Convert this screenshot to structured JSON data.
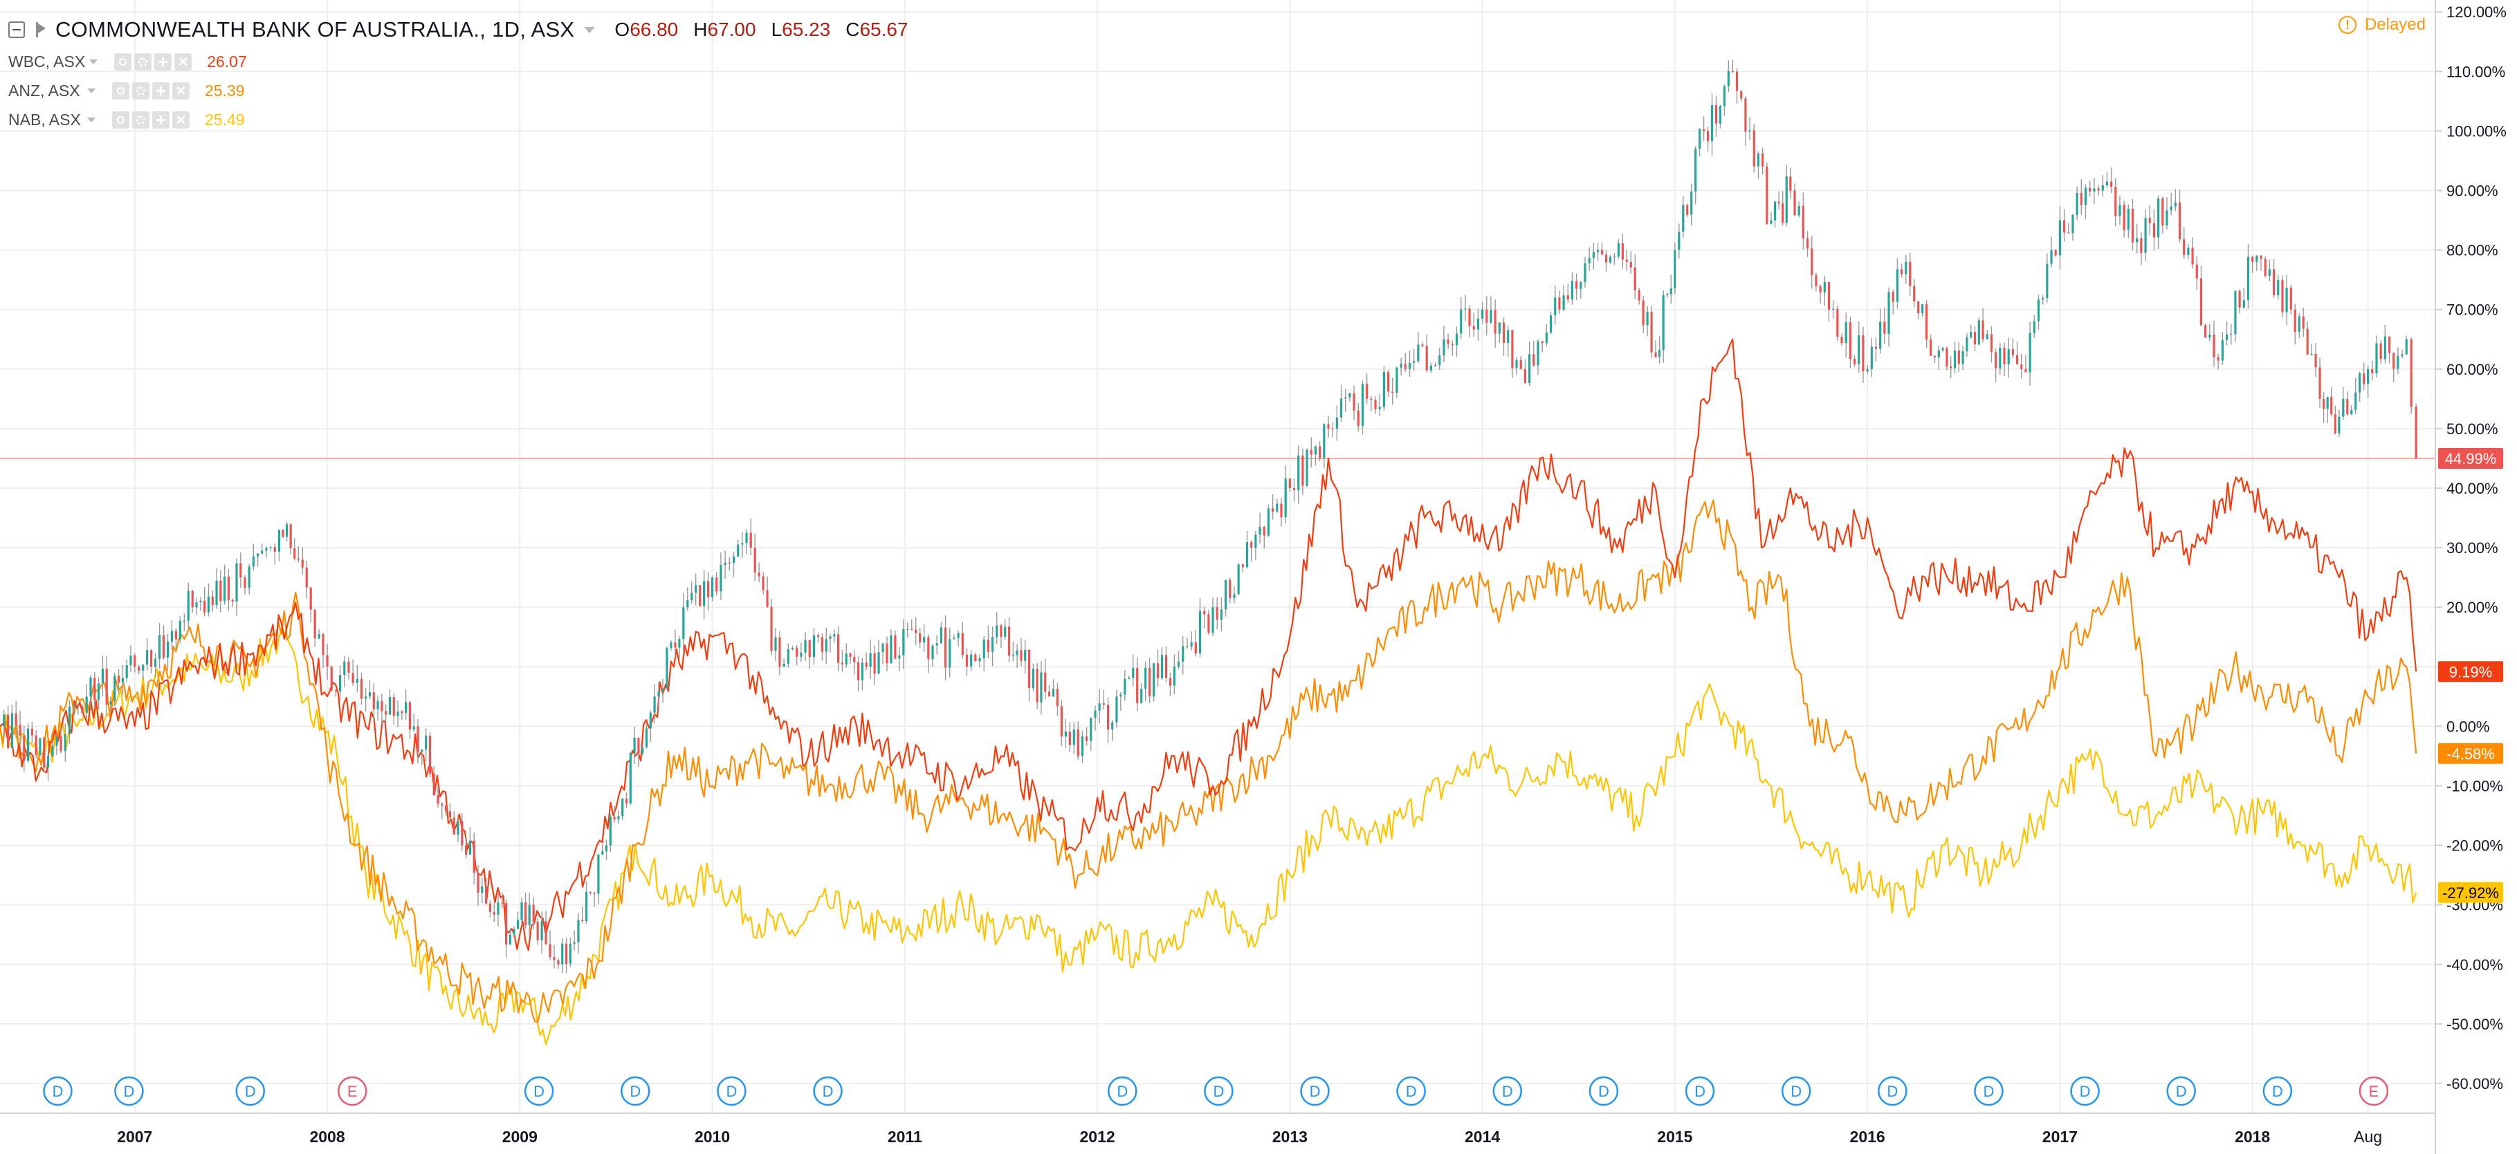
{
  "header": {
    "title": "COMMONWEALTH BANK OF AUSTRALIA., 1D, ASX",
    "ohlc": [
      {
        "k": "O",
        "v": "66.80"
      },
      {
        "k": "H",
        "v": "67.00"
      },
      {
        "k": "L",
        "v": "65.23"
      },
      {
        "k": "C",
        "v": "65.67"
      }
    ],
    "delayed": "Delayed"
  },
  "legend": [
    {
      "name": "WBC, ASX",
      "value": "26.07",
      "color": "#f23d10"
    },
    {
      "name": "ANZ, ASX",
      "value": "25.39",
      "color": "#ff8c00"
    },
    {
      "name": "NAB, ASX",
      "value": "25.49",
      "color": "#ffc400"
    }
  ],
  "icons": [
    "collapse-icon",
    "flag-icon",
    "chevron-down-icon",
    "eye-icon",
    "gear-icon",
    "plus-icon",
    "close-icon",
    "info-icon"
  ],
  "colors": {
    "cba_up": "#26a69a",
    "cba_down": "#ef5350",
    "cba_wick": "#999999",
    "wbc": "#f23d10",
    "anz": "#ff8c00",
    "nab": "#ffc400",
    "grid": "#eeeeee",
    "axis_text": "#131722",
    "price_line": "#f0b4a0",
    "event_d": "#2196f3",
    "event_e": "#e85a6f"
  },
  "chart_data": {
    "type": "line",
    "title": "COMMONWEALTH BANK OF AUSTRALIA., 1D, ASX",
    "xlabel": "",
    "ylabel": "",
    "grid": true,
    "xlim": [
      2006.3,
      2018.95
    ],
    "ylim": [
      -65,
      122
    ],
    "x_ticks": [
      {
        "x": 2007,
        "label": "2007"
      },
      {
        "x": 2008,
        "label": "2008"
      },
      {
        "x": 2009,
        "label": "2009"
      },
      {
        "x": 2010,
        "label": "2010"
      },
      {
        "x": 2011,
        "label": "2011"
      },
      {
        "x": 2012,
        "label": "2012"
      },
      {
        "x": 2013,
        "label": "2013"
      },
      {
        "x": 2014,
        "label": "2014"
      },
      {
        "x": 2015,
        "label": "2015"
      },
      {
        "x": 2016,
        "label": "2016"
      },
      {
        "x": 2017,
        "label": "2017"
      },
      {
        "x": 2018,
        "label": "2018"
      },
      {
        "x": 2018.6,
        "label": "Aug"
      }
    ],
    "y_ticks": [
      {
        "y": 120,
        "label": "120.00%"
      },
      {
        "y": 110,
        "label": "110.00%"
      },
      {
        "y": 100,
        "label": "100.00%"
      },
      {
        "y": 90,
        "label": "90.00%"
      },
      {
        "y": 80,
        "label": "80.00%"
      },
      {
        "y": 70,
        "label": "70.00%"
      },
      {
        "y": 60,
        "label": "60.00%"
      },
      {
        "y": 50,
        "label": "50.00%"
      },
      {
        "y": 40,
        "label": "40.00%"
      },
      {
        "y": 30,
        "label": "30.00%"
      },
      {
        "y": 20,
        "label": "20.00%"
      },
      {
        "y": 10,
        "label": "10.00%"
      },
      {
        "y": 0,
        "label": "0.00%"
      },
      {
        "y": -10,
        "label": "-10.00%"
      },
      {
        "y": -20,
        "label": "-20.00%"
      },
      {
        "y": -30,
        "label": "-30.00%"
      },
      {
        "y": -40,
        "label": "-40.00%"
      },
      {
        "y": -50,
        "label": "-50.00%"
      },
      {
        "y": -60,
        "label": "-60.00%"
      }
    ],
    "last_values": [
      {
        "series": "CBA",
        "y": 44.99,
        "label": "44.99%",
        "color": "#ef5350",
        "text_color": "#ffffff"
      },
      {
        "series": "WBC",
        "y": 9.19,
        "label": "9.19%",
        "color": "#f23d10",
        "text_color": "#ffffff"
      },
      {
        "series": "ANZ",
        "y": -4.58,
        "label": "-4.58%",
        "color": "#ff8c00",
        "text_color": "#ffffff"
      },
      {
        "series": "NAB",
        "y": -27.92,
        "label": "-27.92%",
        "color": "#ffc400",
        "text_color": "#000000"
      }
    ],
    "series": [
      {
        "name": "COMMONWEALTH BANK OF AUSTRALIA.",
        "style": "candles",
        "color": "#999999",
        "x": [
          2006.3,
          2006.55,
          2006.75,
          2007.0,
          2007.3,
          2007.55,
          2007.75,
          2007.85,
          2008.0,
          2008.2,
          2008.45,
          2008.7,
          2008.95,
          2009.05,
          2009.2,
          2009.45,
          2009.7,
          2009.85,
          2010.0,
          2010.2,
          2010.35,
          2010.55,
          2010.8,
          2011.1,
          2011.3,
          2011.5,
          2011.75,
          2011.9,
          2012.1,
          2012.4,
          2012.6,
          2012.8,
          2013.0,
          2013.2,
          2013.4,
          2013.6,
          2013.8,
          2014.0,
          2014.2,
          2014.4,
          2014.6,
          2014.75,
          2014.9,
          2015.0,
          2015.15,
          2015.3,
          2015.5,
          2015.6,
          2015.8,
          2016.0,
          2016.2,
          2016.35,
          2016.6,
          2016.8,
          2017.0,
          2017.2,
          2017.4,
          2017.6,
          2017.8,
          2018.0,
          2018.2,
          2018.35,
          2018.45,
          2018.6,
          2018.8,
          2018.85
        ],
        "values": [
          0,
          -5,
          5,
          10,
          20,
          25,
          33,
          28,
          10,
          5,
          0,
          -20,
          -35,
          -30,
          -40,
          -20,
          5,
          20,
          25,
          30,
          10,
          15,
          10,
          15,
          12,
          15,
          5,
          -5,
          5,
          10,
          20,
          30,
          40,
          50,
          55,
          60,
          65,
          70,
          60,
          70,
          80,
          78,
          62,
          80,
          100,
          110,
          85,
          90,
          70,
          60,
          78,
          62,
          65,
          60,
          85,
          90,
          82,
          88,
          62,
          78,
          70,
          55,
          52,
          60,
          65,
          45
        ]
      },
      {
        "name": "WBC, ASX",
        "style": "line",
        "color": "#f23d10",
        "x": [
          2006.3,
          2006.5,
          2006.7,
          2007.0,
          2007.3,
          2007.6,
          2007.85,
          2008.0,
          2008.2,
          2008.5,
          2008.8,
          2009.0,
          2009.15,
          2009.4,
          2009.6,
          2009.8,
          2010.0,
          2010.15,
          2010.3,
          2010.5,
          2010.75,
          2011.0,
          2011.3,
          2011.5,
          2011.75,
          2011.9,
          2012.0,
          2012.2,
          2012.4,
          2012.6,
          2012.8,
          2013.0,
          2013.2,
          2013.35,
          2013.5,
          2013.7,
          2013.9,
          2014.1,
          2014.3,
          2014.5,
          2014.7,
          2014.9,
          2015.0,
          2015.15,
          2015.3,
          2015.45,
          2015.6,
          2015.8,
          2016.0,
          2016.15,
          2016.3,
          2016.6,
          2016.8,
          2017.0,
          2017.2,
          2017.35,
          2017.5,
          2017.7,
          2017.9,
          2018.1,
          2018.3,
          2018.45,
          2018.6,
          2018.8,
          2018.85
        ],
        "values": [
          0,
          -8,
          3,
          0,
          10,
          12,
          18,
          5,
          0,
          -5,
          -25,
          -35,
          -33,
          -20,
          -5,
          10,
          15,
          12,
          2,
          -5,
          0,
          -5,
          -10,
          -5,
          -15,
          -20,
          -12,
          -15,
          -5,
          -10,
          0,
          15,
          45,
          20,
          25,
          35,
          35,
          30,
          45,
          40,
          30,
          40,
          25,
          55,
          65,
          30,
          40,
          30,
          35,
          20,
          25,
          25,
          20,
          25,
          40,
          45,
          30,
          30,
          40,
          35,
          30,
          25,
          15,
          25,
          9.19
        ]
      },
      {
        "name": "ANZ, ASX",
        "style": "line",
        "color": "#ff8c00",
        "x": [
          2006.3,
          2006.5,
          2006.7,
          2007.0,
          2007.3,
          2007.6,
          2007.85,
          2008.0,
          2008.15,
          2008.35,
          2008.6,
          2008.8,
          2008.95,
          2009.15,
          2009.4,
          2009.6,
          2009.8,
          2010.0,
          2010.2,
          2010.4,
          2010.6,
          2010.85,
          2011.1,
          2011.3,
          2011.5,
          2011.75,
          2011.9,
          2012.1,
          2012.3,
          2012.5,
          2012.7,
          2012.9,
          2013.1,
          2013.3,
          2013.5,
          2013.7,
          2013.9,
          2014.1,
          2014.3,
          2014.5,
          2014.7,
          2014.9,
          2015.0,
          2015.2,
          2015.4,
          2015.55,
          2015.7,
          2015.9,
          2016.0,
          2016.2,
          2016.4,
          2016.6,
          2016.8,
          2017.0,
          2017.2,
          2017.35,
          2017.5,
          2017.7,
          2017.9,
          2018.1,
          2018.3,
          2018.45,
          2018.6,
          2018.8,
          2018.85
        ],
        "values": [
          0,
          -5,
          5,
          5,
          15,
          10,
          20,
          -5,
          -20,
          -30,
          -40,
          -45,
          -45,
          -48,
          -40,
          -20,
          -5,
          -10,
          -5,
          -8,
          -10,
          -8,
          -15,
          -12,
          -15,
          -18,
          -25,
          -20,
          -18,
          -15,
          -10,
          -5,
          5,
          5,
          15,
          20,
          25,
          20,
          25,
          25,
          20,
          25,
          25,
          38,
          20,
          25,
          0,
          -2,
          -10,
          -15,
          -10,
          -5,
          0,
          10,
          20,
          25,
          -5,
          0,
          10,
          5,
          5,
          -5,
          5,
          10,
          -4.58
        ]
      },
      {
        "name": "NAB, ASX",
        "style": "line",
        "color": "#ffc400",
        "x": [
          2006.3,
          2006.5,
          2006.7,
          2007.0,
          2007.3,
          2007.55,
          2007.75,
          2007.9,
          2008.05,
          2008.2,
          2008.4,
          2008.6,
          2008.85,
          2009.0,
          2009.15,
          2009.35,
          2009.6,
          2009.8,
          2010.0,
          2010.2,
          2010.4,
          2010.6,
          2010.8,
          2011.0,
          2011.3,
          2011.5,
          2011.7,
          2011.85,
          2012.0,
          2012.2,
          2012.4,
          2012.6,
          2012.8,
          2013.0,
          2013.2,
          2013.4,
          2013.6,
          2013.8,
          2014.0,
          2014.2,
          2014.4,
          2014.6,
          2014.8,
          2015.0,
          2015.15,
          2015.3,
          2015.5,
          2015.7,
          2015.9,
          2016.0,
          2016.2,
          2016.4,
          2016.6,
          2016.8,
          2017.0,
          2017.2,
          2017.35,
          2017.5,
          2017.7,
          2017.9,
          2018.1,
          2018.3,
          2018.45,
          2018.6,
          2018.8,
          2018.85
        ],
        "values": [
          0,
          -5,
          0,
          5,
          10,
          8,
          15,
          5,
          -5,
          -25,
          -35,
          -45,
          -50,
          -45,
          -52,
          -42,
          -20,
          -30,
          -25,
          -32,
          -35,
          -30,
          -33,
          -35,
          -30,
          -35,
          -32,
          -40,
          -35,
          -38,
          -35,
          -30,
          -35,
          -25,
          -15,
          -20,
          -15,
          -10,
          -5,
          -10,
          -5,
          -10,
          -15,
          -5,
          5,
          0,
          -10,
          -20,
          -25,
          -25,
          -30,
          -20,
          -25,
          -20,
          -10,
          -5,
          -15,
          -15,
          -10,
          -15,
          -15,
          -20,
          -25,
          -20,
          -25,
          -27.92
        ]
      }
    ],
    "events": [
      {
        "x": 2006.6,
        "label": "D",
        "kind": "dividend"
      },
      {
        "x": 2006.97,
        "label": "D",
        "kind": "dividend"
      },
      {
        "x": 2007.6,
        "label": "D",
        "kind": "dividend"
      },
      {
        "x": 2008.13,
        "label": "E",
        "kind": "earnings"
      },
      {
        "x": 2009.1,
        "label": "D",
        "kind": "dividend"
      },
      {
        "x": 2009.6,
        "label": "D",
        "kind": "dividend"
      },
      {
        "x": 2010.1,
        "label": "D",
        "kind": "dividend"
      },
      {
        "x": 2010.6,
        "label": "D",
        "kind": "dividend"
      },
      {
        "x": 2012.13,
        "label": "D",
        "kind": "dividend"
      },
      {
        "x": 2012.63,
        "label": "D",
        "kind": "dividend"
      },
      {
        "x": 2013.13,
        "label": "D",
        "kind": "dividend"
      },
      {
        "x": 2013.63,
        "label": "D",
        "kind": "dividend"
      },
      {
        "x": 2014.13,
        "label": "D",
        "kind": "dividend"
      },
      {
        "x": 2014.63,
        "label": "D",
        "kind": "dividend"
      },
      {
        "x": 2015.13,
        "label": "D",
        "kind": "dividend"
      },
      {
        "x": 2015.63,
        "label": "D",
        "kind": "dividend"
      },
      {
        "x": 2016.13,
        "label": "D",
        "kind": "dividend"
      },
      {
        "x": 2016.63,
        "label": "D",
        "kind": "dividend"
      },
      {
        "x": 2017.13,
        "label": "D",
        "kind": "dividend"
      },
      {
        "x": 2017.63,
        "label": "D",
        "kind": "dividend"
      },
      {
        "x": 2018.13,
        "label": "D",
        "kind": "dividend"
      },
      {
        "x": 2018.63,
        "label": "E",
        "kind": "earnings"
      }
    ]
  }
}
